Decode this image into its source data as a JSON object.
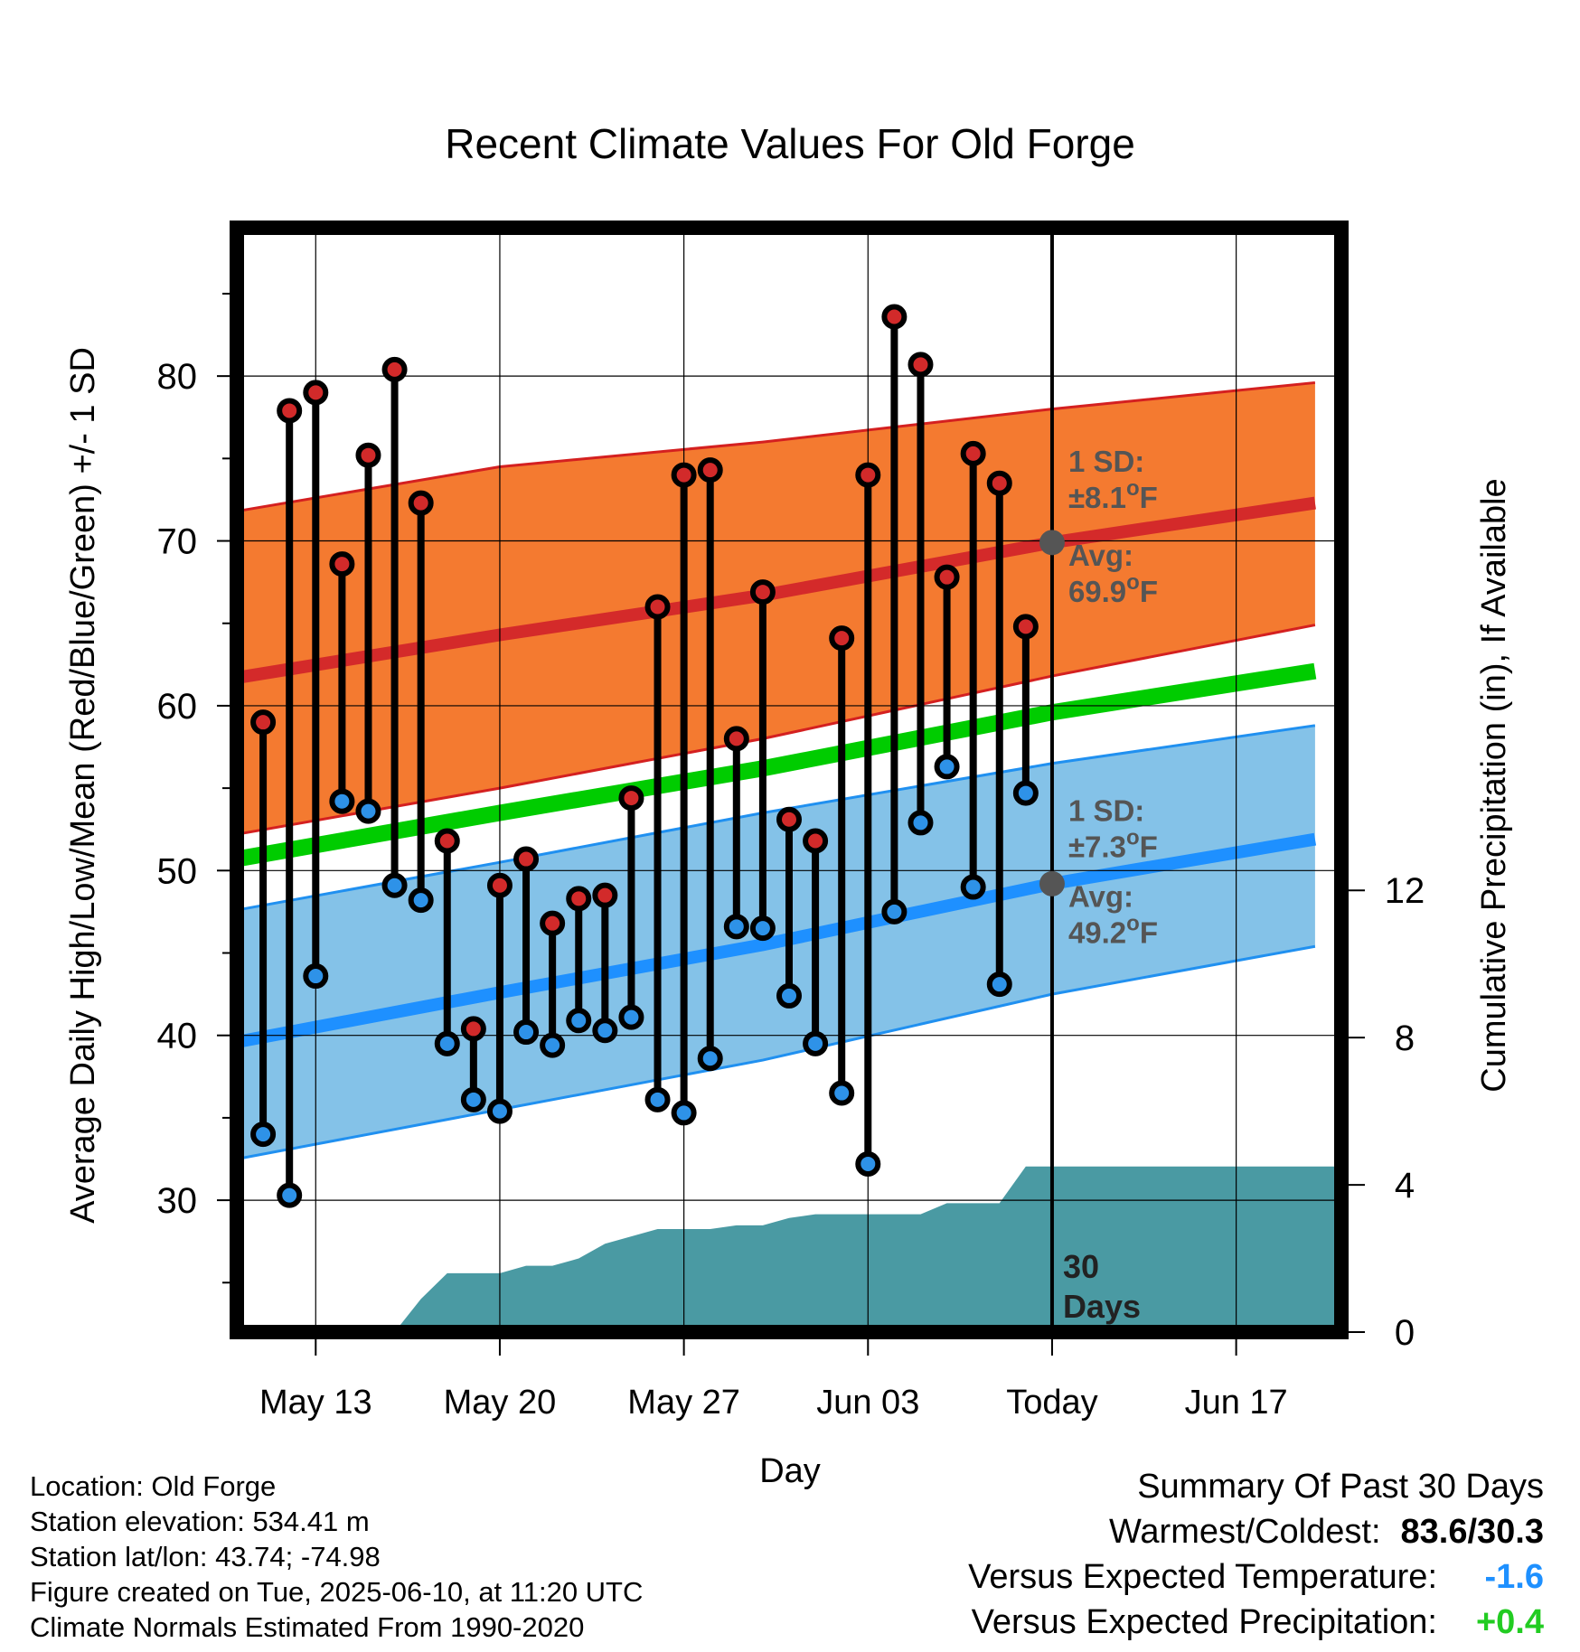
{
  "chart_data": {
    "type": "line",
    "title": "Recent Climate Values For Old Forge",
    "xlabel": "Day",
    "ylabel": "Average Daily High/Low/Mean (Red/Blue/Green) +/- 1 SD",
    "y2label": "Cumulative Precipitation (in), If Available",
    "ylim": [
      22,
      89
    ],
    "y2lim": [
      0,
      30
    ],
    "x_range_days": [
      "2025-05-10",
      "2025-06-21"
    ],
    "yticks": [
      "30",
      "40",
      "50",
      "60",
      "70",
      "80"
    ],
    "y2ticks": [
      "0",
      "4",
      "8",
      "12"
    ],
    "xticks": [
      {
        "date": "2025-05-13",
        "label": "May 13"
      },
      {
        "date": "2025-05-20",
        "label": "May 20"
      },
      {
        "date": "2025-05-27",
        "label": "May 27"
      },
      {
        "date": "2025-06-03",
        "label": "Jun 03"
      },
      {
        "date": "2025-06-10",
        "label": "Today"
      },
      {
        "date": "2025-06-17",
        "label": "Jun 17"
      }
    ],
    "today": "2025-06-10",
    "today_label": "30 Days",
    "grid": true,
    "normals": {
      "dates": [
        "2025-05-10",
        "2025-05-20",
        "2025-05-30",
        "2025-06-10",
        "2025-06-20"
      ],
      "high_avg": [
        61.7,
        64.3,
        66.7,
        69.9,
        72.3
      ],
      "high_upper": [
        71.8,
        74.5,
        76.0,
        78.0,
        79.6
      ],
      "high_lower": [
        52.2,
        55.0,
        58.0,
        61.8,
        64.9
      ],
      "low_avg": [
        39.6,
        42.6,
        45.5,
        49.2,
        51.9
      ],
      "low_upper": [
        47.6,
        50.5,
        53.5,
        56.5,
        58.8
      ],
      "low_lower": [
        32.5,
        35.5,
        38.5,
        42.5,
        45.4
      ],
      "mean_avg": [
        50.7,
        53.5,
        56.2,
        59.6,
        62.1
      ]
    },
    "high_sd_label": "1 SD:\n±8.1°F",
    "high_avg_label": "Avg:\n69.9°F",
    "low_sd_label": "1 SD:\n±7.3°F",
    "low_avg_label": "Avg:\n49.2°F",
    "daily": [
      {
        "date": "2025-05-11",
        "high": 59.0,
        "low": 34.0
      },
      {
        "date": "2025-05-12",
        "high": 77.9,
        "low": 30.3
      },
      {
        "date": "2025-05-13",
        "high": 79.0,
        "low": 43.6
      },
      {
        "date": "2025-05-14",
        "high": 68.6,
        "low": 54.2
      },
      {
        "date": "2025-05-15",
        "high": 75.2,
        "low": 53.6
      },
      {
        "date": "2025-05-16",
        "high": 80.4,
        "low": 49.1
      },
      {
        "date": "2025-05-17",
        "high": 72.3,
        "low": 48.2
      },
      {
        "date": "2025-05-18",
        "high": 51.8,
        "low": 39.5
      },
      {
        "date": "2025-05-19",
        "high": 40.4,
        "low": 36.1
      },
      {
        "date": "2025-05-20",
        "high": 49.1,
        "low": 35.4
      },
      {
        "date": "2025-05-21",
        "high": 50.7,
        "low": 40.2
      },
      {
        "date": "2025-05-22",
        "high": 46.8,
        "low": 39.4
      },
      {
        "date": "2025-05-23",
        "high": 48.3,
        "low": 40.9
      },
      {
        "date": "2025-05-24",
        "high": 48.5,
        "low": 40.3
      },
      {
        "date": "2025-05-25",
        "high": 54.4,
        "low": 41.1
      },
      {
        "date": "2025-05-26",
        "high": 66.0,
        "low": 36.1
      },
      {
        "date": "2025-05-27",
        "high": 74.0,
        "low": 35.3
      },
      {
        "date": "2025-05-28",
        "high": 74.3,
        "low": 38.6
      },
      {
        "date": "2025-05-29",
        "high": 58.0,
        "low": 46.6
      },
      {
        "date": "2025-05-30",
        "high": 66.9,
        "low": 46.5
      },
      {
        "date": "2025-05-31",
        "high": 53.1,
        "low": 42.4
      },
      {
        "date": "2025-06-01",
        "high": 51.8,
        "low": 39.5
      },
      {
        "date": "2025-06-02",
        "high": 64.1,
        "low": 36.5
      },
      {
        "date": "2025-06-03",
        "high": 74.0,
        "low": 32.2
      },
      {
        "date": "2025-06-04",
        "high": 83.6,
        "low": 47.5
      },
      {
        "date": "2025-06-05",
        "high": 80.7,
        "low": 52.9
      },
      {
        "date": "2025-06-06",
        "high": 67.8,
        "low": 56.3
      },
      {
        "date": "2025-06-07",
        "high": 75.3,
        "low": 49.0
      },
      {
        "date": "2025-06-08",
        "high": 73.5,
        "low": 43.1
      },
      {
        "date": "2025-06-09",
        "high": 64.8,
        "low": 54.7
      }
    ],
    "precip_cumulative": [
      {
        "date": "2025-05-16",
        "value": 0.0
      },
      {
        "date": "2025-05-17",
        "value": 0.9
      },
      {
        "date": "2025-05-18",
        "value": 1.6
      },
      {
        "date": "2025-05-19",
        "value": 1.6
      },
      {
        "date": "2025-05-20",
        "value": 1.6
      },
      {
        "date": "2025-05-21",
        "value": 1.8
      },
      {
        "date": "2025-05-22",
        "value": 1.8
      },
      {
        "date": "2025-05-23",
        "value": 2.0
      },
      {
        "date": "2025-05-24",
        "value": 2.4
      },
      {
        "date": "2025-05-25",
        "value": 2.6
      },
      {
        "date": "2025-05-26",
        "value": 2.8
      },
      {
        "date": "2025-05-27",
        "value": 2.8
      },
      {
        "date": "2025-05-28",
        "value": 2.8
      },
      {
        "date": "2025-05-29",
        "value": 2.9
      },
      {
        "date": "2025-05-30",
        "value": 2.9
      },
      {
        "date": "2025-05-31",
        "value": 3.1
      },
      {
        "date": "2025-06-01",
        "value": 3.2
      },
      {
        "date": "2025-06-02",
        "value": 3.2
      },
      {
        "date": "2025-06-03",
        "value": 3.2
      },
      {
        "date": "2025-06-04",
        "value": 3.2
      },
      {
        "date": "2025-06-05",
        "value": 3.2
      },
      {
        "date": "2025-06-06",
        "value": 3.5
      },
      {
        "date": "2025-06-07",
        "value": 3.5
      },
      {
        "date": "2025-06-08",
        "value": 3.5
      },
      {
        "date": "2025-06-09",
        "value": 4.5
      },
      {
        "date": "2025-06-21",
        "value": 4.5
      }
    ],
    "colors": {
      "high_band": "#f47a30",
      "high_edge": "#d42020",
      "high_line": "#d42a2a",
      "low_band": "#84c2e8",
      "low_edge": "#2090f0",
      "low_line": "#1e90ff",
      "mean_line": "#00cc00",
      "precip": "#4a9aa3",
      "high_dot": "#d22a2a",
      "low_dot": "#2e92e8",
      "avg_dot": "#555555",
      "annotation": "#555555"
    }
  },
  "footer": {
    "location": "Location: Old Forge",
    "elevation": "Station elevation: 534.41 m",
    "latlon": "Station lat/lon: 43.74; -74.98",
    "created": "Figure created on Tue, 2025-06-10, at 11:20 UTC",
    "normals": "Climate Normals Estimated From 1990-2020"
  },
  "summary": {
    "heading": "Summary Of Past 30 Days",
    "warmest_label": "Warmest/Coldest:",
    "warmest_value": "83.6/30.3",
    "temp_label": "Versus Expected Temperature:",
    "temp_value": "-1.6",
    "temp_color": "#1e90ff",
    "precip_label": "Versus Expected Precipitation:",
    "precip_value": "+0.4",
    "precip_color": "#22cc22"
  }
}
